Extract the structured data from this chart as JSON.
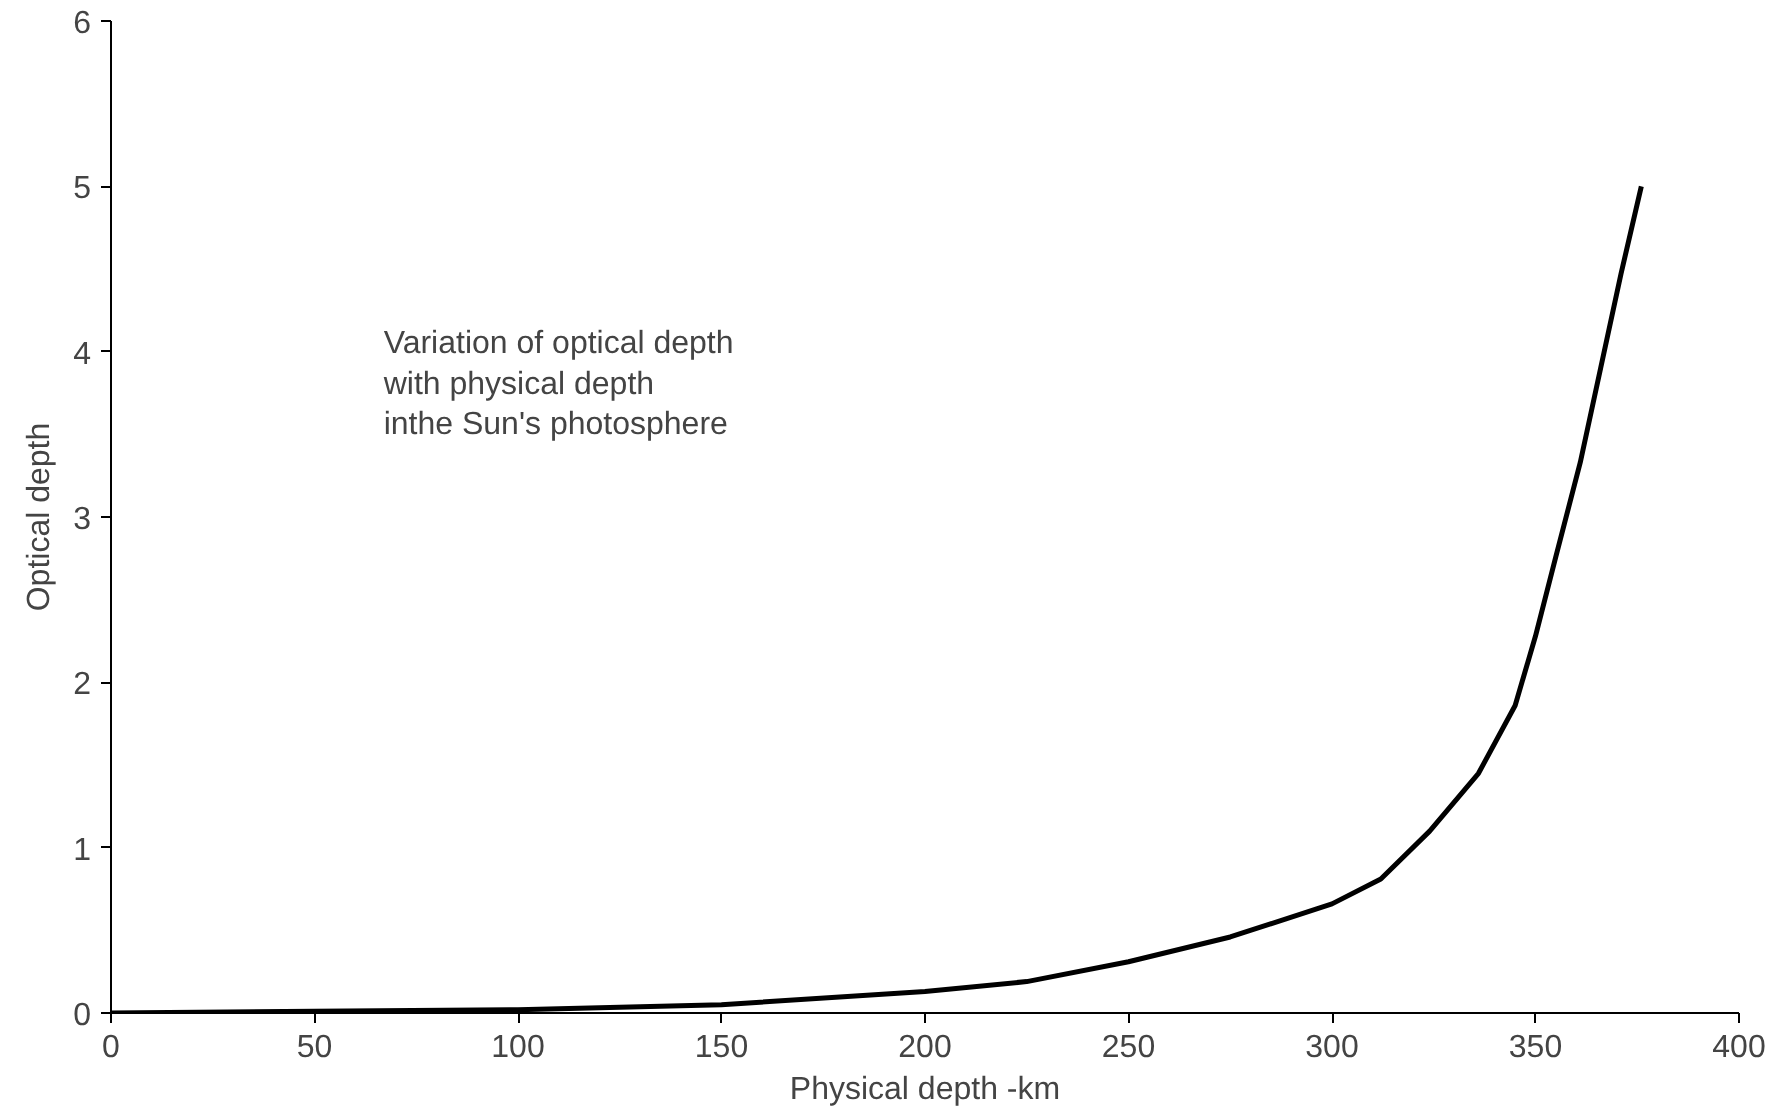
{
  "chart_data": {
    "type": "line",
    "xlabel": "Physical depth -km",
    "ylabel": "Optical depth",
    "annotations": [
      "Variation of optical depth\nwith physical depth\ninthe Sun's photosphere"
    ],
    "x": [
      0,
      50,
      100,
      150,
      200,
      225,
      250,
      275,
      300,
      312,
      324,
      336,
      345,
      350,
      355,
      361,
      366,
      371,
      376
    ],
    "series": [
      {
        "color": "#000000",
        "values": [
          0,
          0.01,
          0.02,
          0.05,
          0.13,
          0.19,
          0.31,
          0.46,
          0.66,
          0.81,
          1.1,
          1.45,
          1.86,
          2.28,
          2.76,
          3.33,
          3.9,
          4.47,
          5.0
        ]
      }
    ],
    "xlim": [
      0,
      400
    ],
    "xticks": [
      0,
      50,
      100,
      150,
      200,
      250,
      300,
      350,
      400
    ],
    "ylim": [
      0,
      6
    ],
    "yticks": [
      0,
      1,
      2,
      3,
      4,
      5,
      6
    ],
    "grid": false,
    "line_style": "solid",
    "marker": "none"
  }
}
